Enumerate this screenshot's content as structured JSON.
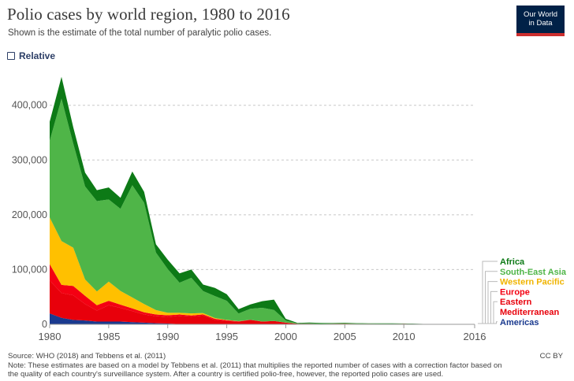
{
  "header": {
    "title": "Polio cases by world region, 1980 to 2016",
    "subtitle": "Shown is the estimate of the total number of paralytic polio cases.",
    "logo_line1": "Our World",
    "logo_line2": "in Data"
  },
  "controls": {
    "relative_label": "Relative"
  },
  "footer": {
    "source": "Source: WHO (2018) and Tebbens et al. (2011)",
    "note_line1": "Note: These estimates are based on a model by Tebbens et al. (2011) that multiplies the reported number of cases with a correction factor based on",
    "note_line2": "the quality of each country's surveillance system. After a country is certified polio-free, however, the reported polio cases are used.",
    "license": "CC BY"
  },
  "chart_data": {
    "type": "area",
    "stacked": true,
    "title": "Polio cases by world region, 1980 to 2016",
    "xlim": [
      1980,
      2016
    ],
    "ylim": [
      0,
      460000
    ],
    "x_ticks": [
      1980,
      1985,
      1990,
      1995,
      2000,
      2005,
      2010,
      2016
    ],
    "y_ticks": [
      0,
      100000,
      200000,
      300000,
      400000
    ],
    "y_tick_labels": [
      "0",
      "100,000",
      "200,000",
      "300,000",
      "400,000"
    ],
    "grid": "horizontal-dashed",
    "legend_position": "right",
    "x": [
      1980,
      1981,
      1982,
      1983,
      1984,
      1985,
      1986,
      1987,
      1988,
      1989,
      1990,
      1991,
      1992,
      1993,
      1994,
      1995,
      1996,
      1997,
      1998,
      1999,
      2000,
      2001,
      2002,
      2003,
      2004,
      2005,
      2006,
      2007,
      2008,
      2009,
      2010,
      2011,
      2012,
      2013,
      2014,
      2015,
      2016
    ],
    "series": [
      {
        "name": "Americas",
        "color": "#1a3a8f",
        "values": [
          20000,
          12000,
          8000,
          7000,
          5000,
          5000,
          5000,
          4000,
          3000,
          2000,
          1500,
          500,
          200,
          100,
          50,
          0,
          0,
          0,
          0,
          0,
          0,
          0,
          0,
          0,
          0,
          0,
          0,
          0,
          0,
          0,
          0,
          0,
          0,
          0,
          0,
          0,
          0
        ]
      },
      {
        "name": "Eastern Mediterranean",
        "color": "#e8000b",
        "values": [
          60000,
          45000,
          45000,
          30000,
          20000,
          30000,
          25000,
          20000,
          15000,
          13000,
          12000,
          15000,
          14000,
          16000,
          8000,
          6000,
          5000,
          8000,
          5000,
          6000,
          3000,
          1000,
          1000,
          700,
          1000,
          1200,
          800,
          800,
          700,
          700,
          500,
          400,
          300,
          400,
          400,
          100,
          50
        ]
      },
      {
        "name": "Europe",
        "color": "#f40012",
        "values": [
          30000,
          15000,
          17000,
          15000,
          10000,
          8000,
          6000,
          5000,
          4000,
          3000,
          3000,
          2500,
          2000,
          2000,
          2000,
          1500,
          500,
          200,
          100,
          100,
          50,
          50,
          30,
          20,
          20,
          20,
          20,
          20,
          20,
          20,
          500,
          20,
          20,
          20,
          20,
          20,
          20
        ]
      },
      {
        "name": "Western Pacific",
        "color": "#ffc000",
        "values": [
          85000,
          80000,
          70000,
          30000,
          25000,
          35000,
          25000,
          20000,
          15000,
          8000,
          4500,
          3000,
          3800,
          2500,
          1500,
          500,
          300,
          200,
          100,
          100,
          50,
          50,
          30,
          20,
          20,
          20,
          20,
          20,
          20,
          20,
          20,
          20,
          20,
          20,
          20,
          20,
          20
        ]
      },
      {
        "name": "South-East Asia",
        "color": "#4fb548",
        "values": [
          140000,
          260000,
          190000,
          170000,
          165000,
          150000,
          150000,
          205000,
          185000,
          105000,
          80000,
          55000,
          65000,
          40000,
          40000,
          35000,
          14000,
          20000,
          25000,
          20000,
          4000,
          500,
          800,
          800,
          800,
          700,
          700,
          500,
          500,
          400,
          300,
          200,
          50,
          20,
          20,
          20,
          20
        ]
      },
      {
        "name": "Africa",
        "color": "#0d7a16",
        "values": [
          35000,
          40000,
          30000,
          25000,
          20000,
          22000,
          20000,
          25000,
          20000,
          15000,
          17000,
          17000,
          15000,
          12000,
          15000,
          12000,
          8000,
          8000,
          12000,
          19000,
          3000,
          1000,
          1500,
          1000,
          800,
          1000,
          600,
          500,
          600,
          600,
          300,
          300,
          200,
          100,
          50,
          20,
          20
        ]
      }
    ]
  }
}
